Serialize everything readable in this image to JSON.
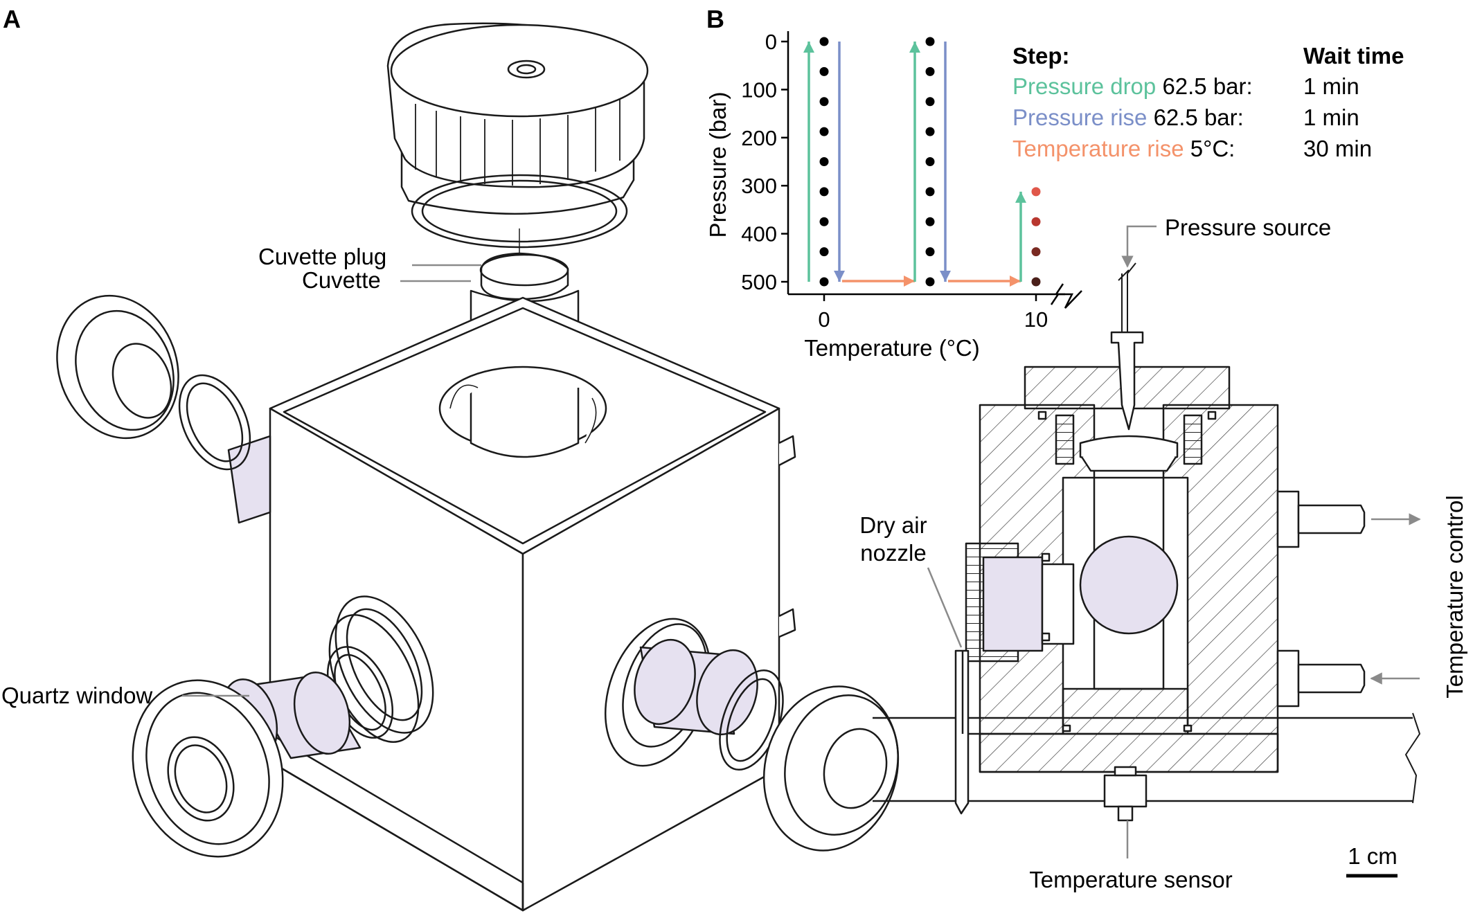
{
  "panels": {
    "a": "A",
    "b": "B"
  },
  "labels": {
    "cuvette_plug": "Cuvette plug",
    "cuvette": "Cuvette",
    "quartz_window": "Quartz window",
    "pressure_source": "Pressure source",
    "dry_air_1": "Dry air",
    "dry_air_2": "nozzle",
    "temperature_control": "Temperature control",
    "temperature_sensor": "Temperature sensor",
    "scale_bar": "1 cm"
  },
  "colors": {
    "pressure_drop": "#5cc29c",
    "pressure_rise": "#7b8fc8",
    "temperature_rise": "#f4926a",
    "quartz": "#e6e1f0",
    "line": "#1a1a1a",
    "callout": "#8a8a8a"
  },
  "steps_table": {
    "header_step": "Step:",
    "header_wait": "Wait time",
    "rows": [
      {
        "name": "Pressure drop",
        "amount": "62.5 bar:",
        "wait": "1 min",
        "color": "#5cc29c"
      },
      {
        "name": "Pressure rise",
        "amount": "62.5 bar:",
        "wait": "1 min",
        "color": "#7b8fc8"
      },
      {
        "name": "Temperature rise",
        "amount": "5°C:",
        "wait": "30 min",
        "color": "#f4926a"
      }
    ]
  },
  "chart_data": {
    "type": "scatter",
    "xlabel": "Temperature (°C)",
    "ylabel": "Pressure (bar)",
    "x_ticks": [
      0,
      10
    ],
    "y_ticks": [
      0,
      100,
      200,
      300,
      400,
      500
    ],
    "xlim": [
      -1,
      11
    ],
    "ylim": [
      500,
      0
    ],
    "y_inverted": true,
    "x_axis_break": true,
    "series": [
      {
        "x": 0,
        "y": [
          0,
          62.5,
          125,
          187.5,
          250,
          312.5,
          375,
          437.5,
          500
        ],
        "color": "#000000"
      },
      {
        "x": 5,
        "y": [
          0,
          62.5,
          125,
          187.5,
          250,
          312.5,
          375,
          437.5,
          500
        ],
        "color": "#000000"
      },
      {
        "x": 10,
        "y": [
          312.5,
          375,
          437.5,
          500
        ],
        "colors": [
          "#e0574a",
          "#b8372f",
          "#7a2a22",
          "#4a1f1a"
        ]
      }
    ],
    "arrows": [
      {
        "kind": "pressure_drop",
        "x": 0,
        "from": 500,
        "to": 0
      },
      {
        "kind": "pressure_rise",
        "x": 0,
        "from": 0,
        "to": 500
      },
      {
        "kind": "temperature_rise",
        "y": 500,
        "from": 0,
        "to": 5
      },
      {
        "kind": "pressure_drop",
        "x": 5,
        "from": 500,
        "to": 0
      },
      {
        "kind": "pressure_rise",
        "x": 5,
        "from": 0,
        "to": 500
      },
      {
        "kind": "temperature_rise",
        "y": 500,
        "from": 5,
        "to": 10
      },
      {
        "kind": "pressure_drop",
        "x": 10,
        "from": 500,
        "to": 312.5
      }
    ]
  }
}
